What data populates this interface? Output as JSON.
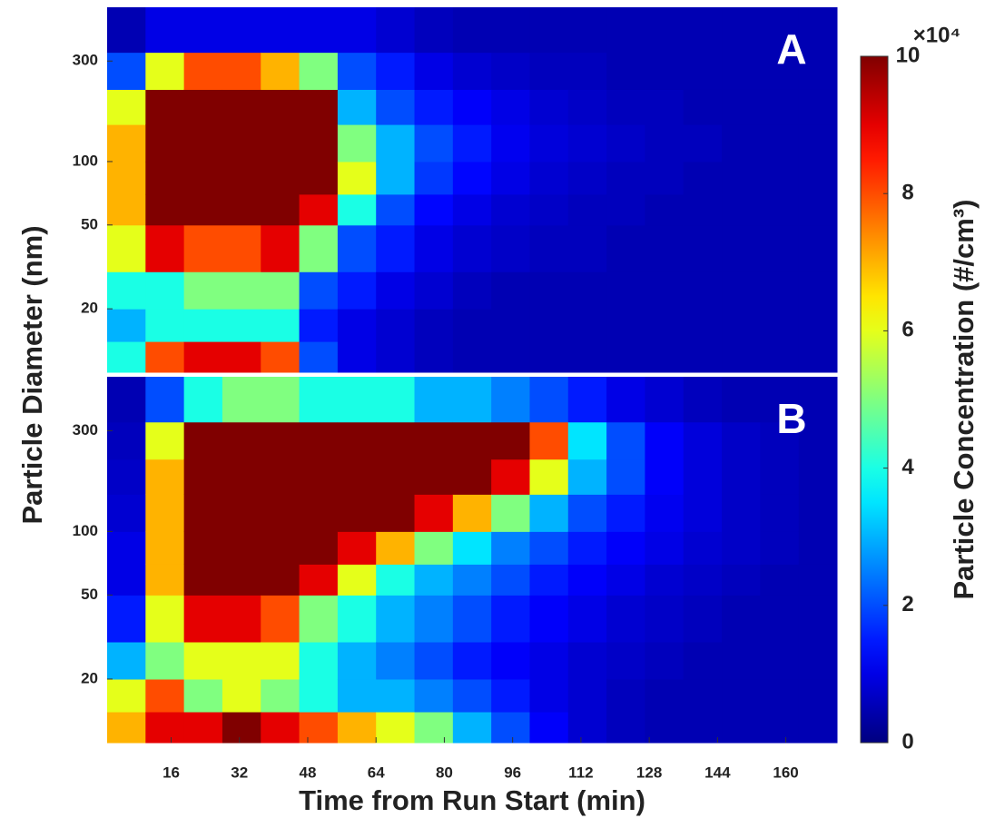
{
  "chart_data": [
    {
      "type": "heatmap",
      "panel_label": "A",
      "ylabel": "Particle Diameter (nm)",
      "yscale": "log",
      "xlim": [
        1,
        172
      ],
      "ylim": [
        10,
        540
      ],
      "yticks": [
        20,
        50,
        100,
        300
      ],
      "x_edges": [
        1,
        10,
        19,
        28,
        37,
        46,
        55,
        64,
        73,
        82,
        91,
        100,
        109,
        118,
        127,
        136,
        145,
        154,
        163,
        172
      ],
      "y_edges": [
        10,
        14,
        20,
        30,
        50,
        70,
        100,
        150,
        220,
        330,
        540
      ],
      "values": [
        [
          4,
          3,
          4,
          6,
          7,
          7,
          7,
          6,
          2,
          0.5
        ],
        [
          8,
          4,
          4,
          9,
          10,
          10,
          10,
          10,
          6,
          1
        ],
        [
          9,
          4,
          5,
          8,
          10,
          10,
          10,
          10,
          8,
          1
        ],
        [
          9,
          4,
          5,
          8,
          10,
          10,
          10,
          10,
          8,
          1
        ],
        [
          8,
          4,
          5,
          9,
          10,
          10,
          10,
          10,
          7,
          1
        ],
        [
          2,
          1.5,
          2,
          5,
          9,
          10,
          10,
          10,
          5,
          1
        ],
        [
          1,
          1,
          1.5,
          2,
          4,
          6,
          5,
          3,
          2,
          1
        ],
        [
          0.8,
          0.8,
          1,
          1.5,
          2,
          3,
          3,
          2,
          1.5,
          0.8
        ],
        [
          0.6,
          0.6,
          0.8,
          1,
          1.3,
          1.8,
          2,
          1.5,
          1,
          0.6
        ],
        [
          0.5,
          0.5,
          0.6,
          0.8,
          1,
          1.3,
          1.5,
          1.2,
          0.8,
          0.5
        ],
        [
          0.5,
          0.5,
          0.5,
          0.7,
          0.8,
          1,
          1.1,
          1,
          0.7,
          0.5
        ],
        [
          0.5,
          0.5,
          0.5,
          0.6,
          0.7,
          0.8,
          0.9,
          0.8,
          0.6,
          0.5
        ],
        [
          0.5,
          0.5,
          0.5,
          0.6,
          0.6,
          0.7,
          0.8,
          0.7,
          0.6,
          0.5
        ],
        [
          0.5,
          0.5,
          0.5,
          0.5,
          0.6,
          0.6,
          0.7,
          0.6,
          0.5,
          0.5
        ],
        [
          0.5,
          0.5,
          0.5,
          0.5,
          0.5,
          0.6,
          0.6,
          0.6,
          0.5,
          0.5
        ],
        [
          0.5,
          0.5,
          0.5,
          0.5,
          0.5,
          0.5,
          0.6,
          0.5,
          0.5,
          0.5
        ],
        [
          0.5,
          0.5,
          0.5,
          0.5,
          0.5,
          0.5,
          0.5,
          0.5,
          0.5,
          0.5
        ],
        [
          0.5,
          0.5,
          0.5,
          0.5,
          0.5,
          0.5,
          0.5,
          0.5,
          0.5,
          0.5
        ],
        [
          0.5,
          0.5,
          0.5,
          0.5,
          0.5,
          0.5,
          0.5,
          0.5,
          0.5,
          0.5
        ]
      ]
    },
    {
      "type": "heatmap",
      "panel_label": "B",
      "xlabel": "Time from Run Start (min)",
      "yscale": "log",
      "xlim": [
        1,
        172
      ],
      "ylim": [
        10,
        540
      ],
      "yticks": [
        20,
        50,
        100,
        300
      ],
      "xticks": [
        16,
        32,
        48,
        64,
        80,
        96,
        112,
        128,
        144,
        160
      ],
      "x_edges": [
        1,
        10,
        19,
        28,
        37,
        46,
        55,
        64,
        73,
        82,
        91,
        100,
        109,
        118,
        127,
        136,
        145,
        154,
        163,
        172
      ],
      "y_edges": [
        10,
        14,
        20,
        30,
        50,
        70,
        100,
        150,
        220,
        330,
        540
      ],
      "values": [
        [
          7,
          6,
          3,
          1.5,
          1,
          1,
          0.8,
          0.7,
          0.6,
          0.5
        ],
        [
          9,
          8,
          5,
          6,
          7,
          7,
          7,
          7,
          6,
          2
        ],
        [
          9,
          5,
          6,
          9,
          10,
          10,
          10,
          10,
          10,
          4
        ],
        [
          10,
          6,
          6,
          9,
          10,
          10,
          10,
          10,
          10,
          5
        ],
        [
          9,
          5,
          6,
          8,
          10,
          10,
          10,
          10,
          10,
          5
        ],
        [
          8,
          4,
          4,
          5,
          9,
          10,
          10,
          10,
          10,
          4
        ],
        [
          7,
          3,
          3,
          4,
          6,
          9,
          10,
          10,
          10,
          4
        ],
        [
          6,
          3,
          2.5,
          3,
          4,
          7,
          10,
          10,
          10,
          4
        ],
        [
          5,
          2.5,
          2,
          2.5,
          3,
          5,
          9,
          10,
          10,
          3
        ],
        [
          3,
          2,
          1.5,
          2,
          2.5,
          3.5,
          7,
          10,
          10,
          3
        ],
        [
          2,
          1.5,
          1.2,
          1.5,
          2,
          2.5,
          5,
          9,
          10,
          2.5
        ],
        [
          1.2,
          1,
          1,
          1.2,
          1.5,
          2,
          3,
          6,
          8,
          2
        ],
        [
          0.8,
          0.8,
          0.8,
          1,
          1.2,
          1.5,
          2,
          3,
          3.5,
          1.5
        ],
        [
          0.6,
          0.6,
          0.7,
          0.8,
          1,
          1.2,
          1.5,
          2,
          2,
          1
        ],
        [
          0.5,
          0.5,
          0.6,
          0.7,
          0.8,
          1,
          1.1,
          1.2,
          1.2,
          0.8
        ],
        [
          0.5,
          0.5,
          0.5,
          0.6,
          0.7,
          0.8,
          0.9,
          0.9,
          0.9,
          0.6
        ],
        [
          0.5,
          0.5,
          0.5,
          0.5,
          0.6,
          0.7,
          0.7,
          0.7,
          0.7,
          0.5
        ],
        [
          0.5,
          0.5,
          0.5,
          0.5,
          0.5,
          0.6,
          0.6,
          0.6,
          0.6,
          0.5
        ],
        [
          0.5,
          0.5,
          0.5,
          0.5,
          0.5,
          0.5,
          0.5,
          0.5,
          0.5,
          0.5
        ]
      ],
      "colorbar": {
        "range": [
          0,
          10
        ],
        "ticks": [
          0,
          2,
          4,
          6,
          8,
          10
        ],
        "multiplier": "×10⁴",
        "label": "Particle Concentration (#/cm³)",
        "colormap": "jet"
      }
    }
  ]
}
